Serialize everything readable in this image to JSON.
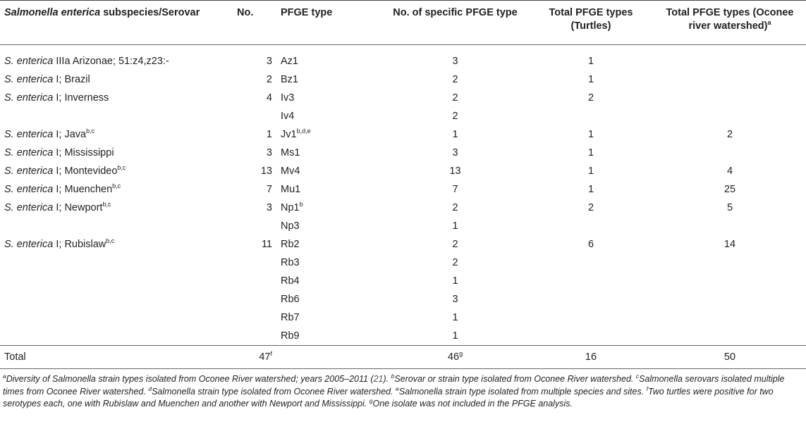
{
  "header": {
    "col1_italic": "Salmonella enterica",
    "col1_rest": " subspecies/Serovar",
    "col2": "No.",
    "col3": "PFGE type",
    "col4": "No. of specific PFGE type",
    "col5": "Total PFGE types (Turtles)",
    "col6": "Total PFGE types (Oconee river watershed)",
    "col6_sup": "a"
  },
  "rows": [
    {
      "sp": "S. enterica",
      "sv": " IIIa Arizonae; 51:z4,z23:-",
      "svsup": "",
      "no": "3",
      "pf": "Az1",
      "pfsup": "",
      "nspec": "3",
      "tt": "1",
      "tw": ""
    },
    {
      "sp": "S. enterica",
      "sv": " I; Brazil",
      "svsup": "",
      "no": "2",
      "pf": "Bz1",
      "pfsup": "",
      "nspec": "2",
      "tt": "1",
      "tw": ""
    },
    {
      "sp": "S. enterica",
      "sv": " I; Inverness",
      "svsup": "",
      "no": "4",
      "pf": "Iv3",
      "pfsup": "",
      "nspec": "2",
      "tt": "2",
      "tw": ""
    },
    {
      "sp": "",
      "sv": "",
      "svsup": "",
      "no": "",
      "pf": "Iv4",
      "pfsup": "",
      "nspec": "2",
      "tt": "",
      "tw": ""
    },
    {
      "sp": "S. enterica",
      "sv": " I; Java",
      "svsup": "b,c",
      "no": "1",
      "pf": "Jv1",
      "pfsup": "b,d,e",
      "nspec": "1",
      "tt": "1",
      "tw": "2"
    },
    {
      "sp": "S. enterica",
      "sv": " I; Mississippi",
      "svsup": "",
      "no": "3",
      "pf": "Ms1",
      "pfsup": "",
      "nspec": "3",
      "tt": "1",
      "tw": ""
    },
    {
      "sp": "S. enterica",
      "sv": " I; Montevideo",
      "svsup": "b,c",
      "no": "13",
      "pf": "Mv4",
      "pfsup": "",
      "nspec": "13",
      "tt": "1",
      "tw": "4"
    },
    {
      "sp": "S. enterica",
      "sv": " I; Muenchen",
      "svsup": "b,c",
      "no": "7",
      "pf": "Mu1",
      "pfsup": "",
      "nspec": "7",
      "tt": "1",
      "tw": "25"
    },
    {
      "sp": "S. enterica",
      "sv": " I; Newport",
      "svsup": "b,c",
      "no": "3",
      "pf": "Np1",
      "pfsup": "b",
      "nspec": "2",
      "tt": "2",
      "tw": "5"
    },
    {
      "sp": "",
      "sv": "",
      "svsup": "",
      "no": "",
      "pf": "Np3",
      "pfsup": "",
      "nspec": "1",
      "tt": "",
      "tw": ""
    },
    {
      "sp": "S. enterica",
      "sv": " I; Rubislaw",
      "svsup": "b,c",
      "no": "11",
      "pf": "Rb2",
      "pfsup": "",
      "nspec": "2",
      "tt": "6",
      "tw": "14"
    },
    {
      "sp": "",
      "sv": "",
      "svsup": "",
      "no": "",
      "pf": "Rb3",
      "pfsup": "",
      "nspec": "2",
      "tt": "",
      "tw": ""
    },
    {
      "sp": "",
      "sv": "",
      "svsup": "",
      "no": "",
      "pf": "Rb4",
      "pfsup": "",
      "nspec": "1",
      "tt": "",
      "tw": ""
    },
    {
      "sp": "",
      "sv": "",
      "svsup": "",
      "no": "",
      "pf": "Rb6",
      "pfsup": "",
      "nspec": "3",
      "tt": "",
      "tw": ""
    },
    {
      "sp": "",
      "sv": "",
      "svsup": "",
      "no": "",
      "pf": "Rb7",
      "pfsup": "",
      "nspec": "1",
      "tt": "",
      "tw": ""
    },
    {
      "sp": "",
      "sv": "",
      "svsup": "",
      "no": "",
      "pf": "Rb9",
      "pfsup": "",
      "nspec": "1",
      "tt": "",
      "tw": ""
    }
  ],
  "total": {
    "label": "Total",
    "no": "47",
    "no_sup": "f",
    "nspec": "46",
    "nspec_sup": "g",
    "tt": "16",
    "tw": "50"
  },
  "footnotes": {
    "a_sup": "a",
    "a": "Diversity of Salmonella strain types isolated from Oconee River watershed; years 2005–2011 (",
    "a_ref": "21",
    "a_end": "). ",
    "b_sup": "b",
    "b": "Serovar or strain type isolated from Oconee River watershed. ",
    "c_sup": "c",
    "c": "Salmonella serovars isolated multiple times from Oconee River watershed. ",
    "d_sup": "d",
    "d": "Salmonella strain type isolated from Oconee River watershed. ",
    "e_sup": "e",
    "e": "Salmonella strain type isolated from multiple species and sites. ",
    "f_sup": "f",
    "f": "Two turtles were positive for two serotypes each, one with Rubislaw and Muenchen and another with Newport and Mississippi. ",
    "g_sup": "g",
    "g": "One isolate was not included in the PFGE analysis."
  }
}
